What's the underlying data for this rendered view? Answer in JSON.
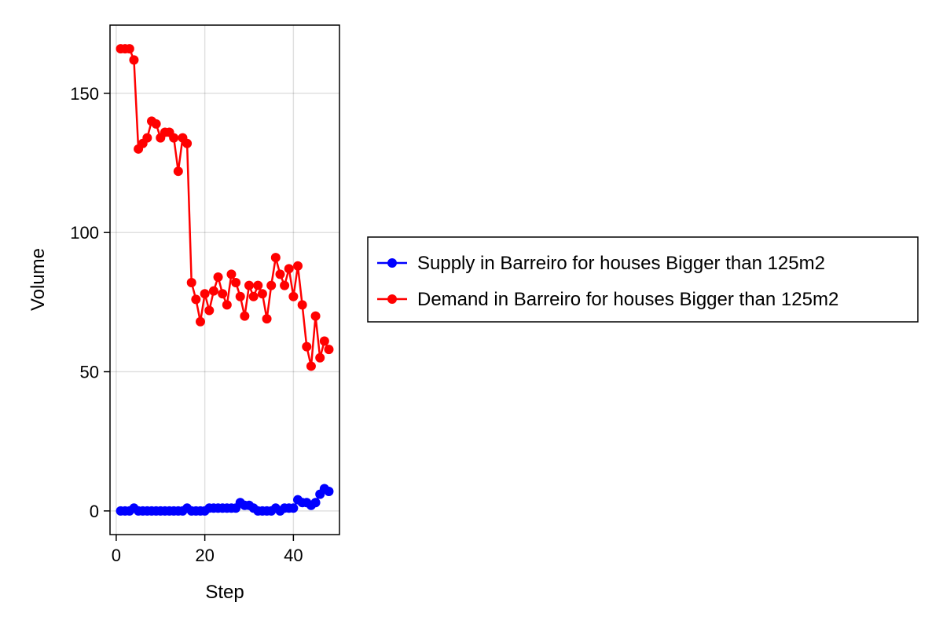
{
  "chart_data": {
    "type": "line",
    "xlabel": "Step",
    "ylabel": "Volume",
    "xlim": [
      -1.4,
      50.4
    ],
    "ylim": [
      -8.5,
      174.5
    ],
    "xticks": [
      0,
      20,
      40
    ],
    "yticks": [
      0,
      50,
      100,
      150
    ],
    "grid": true,
    "legend_position": "right",
    "x": [
      1,
      2,
      3,
      4,
      5,
      6,
      7,
      8,
      9,
      10,
      11,
      12,
      13,
      14,
      15,
      16,
      17,
      18,
      19,
      20,
      21,
      22,
      23,
      24,
      25,
      26,
      27,
      28,
      29,
      30,
      31,
      32,
      33,
      34,
      35,
      36,
      37,
      38,
      39,
      40,
      41,
      42,
      43,
      44,
      45,
      46,
      47,
      48
    ],
    "series": [
      {
        "name": "Supply in Barreiro for houses Bigger than 125m2",
        "color": "#0000ff",
        "values": [
          0,
          0,
          0,
          1,
          0,
          0,
          0,
          0,
          0,
          0,
          0,
          0,
          0,
          0,
          0,
          1,
          0,
          0,
          0,
          0,
          1,
          1,
          1,
          1,
          1,
          1,
          1,
          3,
          2,
          2,
          1,
          0,
          0,
          0,
          0,
          1,
          0,
          1,
          1,
          1,
          4,
          3,
          3,
          2,
          3,
          6,
          8,
          7
        ]
      },
      {
        "name": "Demand in Barreiro for houses Bigger than 125m2",
        "color": "#ff0000",
        "values": [
          166,
          166,
          166,
          162,
          130,
          132,
          134,
          140,
          139,
          134,
          136,
          136,
          134,
          122,
          134,
          132,
          82,
          76,
          68,
          78,
          72,
          79,
          84,
          78,
          74,
          85,
          82,
          77,
          70,
          81,
          77,
          81,
          78,
          69,
          81,
          91,
          85,
          81,
          87,
          77,
          88,
          74,
          59,
          52,
          70,
          55,
          61,
          58
        ]
      }
    ]
  }
}
